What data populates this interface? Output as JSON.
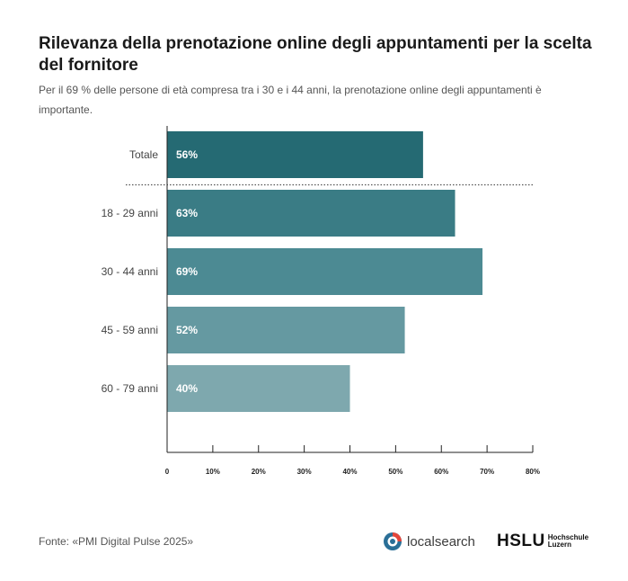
{
  "title": "Rilevanza della prenotazione online degli appuntamenti per la scelta del fornitore",
  "subtitle": "Per il 69 % delle persone di età compresa tra i 30 e i 44 anni, la prenotazione online degli appuntamenti è importante.",
  "source": "Fonte: «PMI Digital Pulse 2025»",
  "logos": {
    "localsearch": "localsearch",
    "hslu": "HSLU",
    "hslu_sub1": "Hochschule",
    "hslu_sub2": "Luzern"
  },
  "colors": {
    "bars": [
      "#256a73",
      "#3a7c85",
      "#4c8a93",
      "#6599a1",
      "#7ea8ae"
    ],
    "axis": "#222222",
    "label_inside": "#ffffff"
  },
  "chart_data": {
    "type": "bar",
    "orientation": "horizontal",
    "categories": [
      "Totale",
      "18 - 29 anni",
      "30 - 44 anni",
      "45 - 59 anni",
      "60 - 79 anni"
    ],
    "values": [
      56,
      63,
      69,
      52,
      40
    ],
    "data_labels": [
      "56%",
      "63%",
      "69%",
      "52%",
      "40%"
    ],
    "xlim": [
      0,
      80
    ],
    "xticks": [
      "0",
      "10%",
      "20%",
      "30%",
      "40%",
      "50%",
      "60%",
      "70%",
      "80%"
    ],
    "separator_after_first": true,
    "grid": false,
    "legend": "none"
  }
}
